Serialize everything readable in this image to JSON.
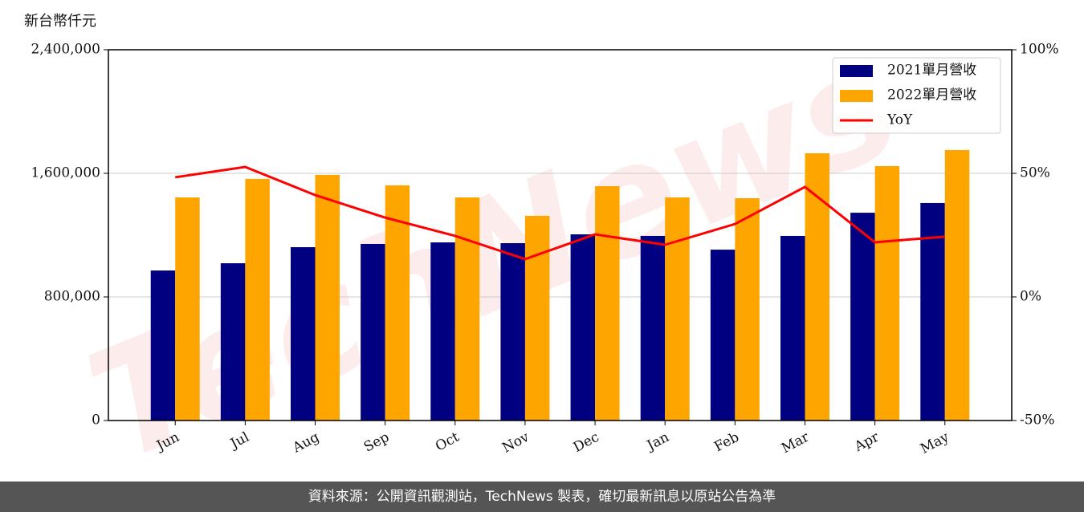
{
  "chart_data": {
    "type": "bar-line",
    "y_label": "新台幣仟元",
    "watermark": "TechNews",
    "categories": [
      "Jun",
      "Jul",
      "Aug",
      "Sep",
      "Oct",
      "Nov",
      "Dec",
      "Jan",
      "Feb",
      "Mar",
      "Apr",
      "May"
    ],
    "series": [
      {
        "name": "2021單月營收",
        "type": "bar",
        "color": "#000080",
        "values": [
          971000,
          1018000,
          1122000,
          1143000,
          1153000,
          1148000,
          1205000,
          1195000,
          1106000,
          1195000,
          1345000,
          1408000
        ]
      },
      {
        "name": "2022單月營收",
        "type": "bar",
        "color": "#ffa500",
        "values": [
          1444000,
          1564000,
          1590000,
          1522000,
          1444000,
          1325000,
          1517000,
          1444000,
          1439000,
          1730000,
          1647000,
          1751000
        ]
      },
      {
        "name": "YoY",
        "type": "line",
        "axis": "y2",
        "color": "#ff0000",
        "values": [
          48.4,
          52.6,
          41.2,
          32.1,
          24.7,
          15.3,
          25.3,
          21.1,
          29.5,
          44.5,
          22.1,
          24.4
        ]
      }
    ],
    "ylim": [
      0,
      2400000
    ],
    "yticks": [
      0,
      {
        "value": 800000,
        "label": "800,000"
      },
      {
        "value": 1600000,
        "label": "1,600,000"
      },
      {
        "value": 2400000,
        "label": "2,400,000"
      }
    ],
    "y2lim": [
      -50,
      100
    ],
    "y2ticks": [
      {
        "value": -50,
        "label": "-50%"
      },
      {
        "value": 0,
        "label": "0%"
      },
      {
        "value": 50,
        "label": "50%"
      },
      {
        "value": 100,
        "label": "100%"
      }
    ],
    "grid": true,
    "legend": "upper right"
  },
  "footer": "資料來源：公開資訊觀測站，TechNews 製表，確切最新訊息以原站公告為準"
}
